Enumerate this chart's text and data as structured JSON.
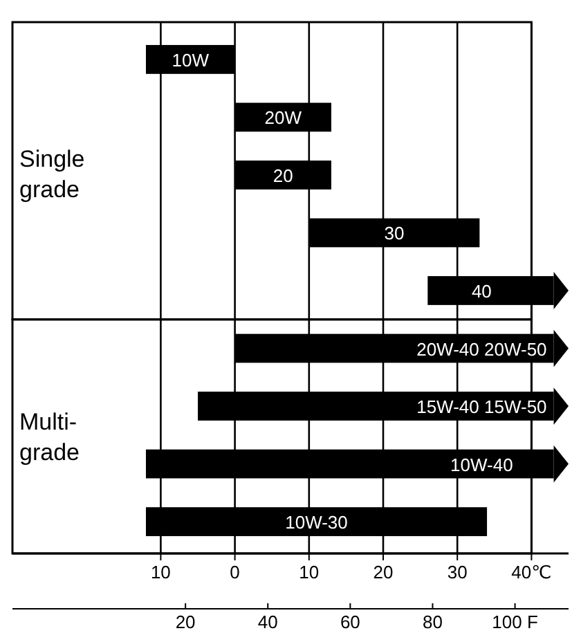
{
  "chart_data": {
    "type": "bar",
    "orientation": "horizontal",
    "categories": [
      "10W",
      "20W",
      "20",
      "30",
      "40",
      "20W-40 20W-50",
      "15W-40 15W-50",
      "10W-40",
      "10W-30"
    ],
    "base": [
      -12,
      0,
      0,
      10,
      26,
      0,
      -5,
      -12,
      -12
    ],
    "values": [
      12,
      13,
      13,
      23,
      17,
      43,
      48,
      55,
      46
    ],
    "color": "#000000",
    "xlim": [
      -30,
      45
    ],
    "xticks": [
      {
        "value": -10,
        "label": "10"
      },
      0,
      10,
      20,
      30,
      {
        "value": 40,
        "label": "40℃"
      }
    ],
    "x2lim": [
      -22,
      113
    ],
    "x2ticks": [
      20,
      40,
      60,
      80,
      {
        "value": 100,
        "label": "100 F"
      }
    ],
    "grid": "x",
    "annotations": [
      "Single grade",
      "Multi-grade"
    ]
  }
}
